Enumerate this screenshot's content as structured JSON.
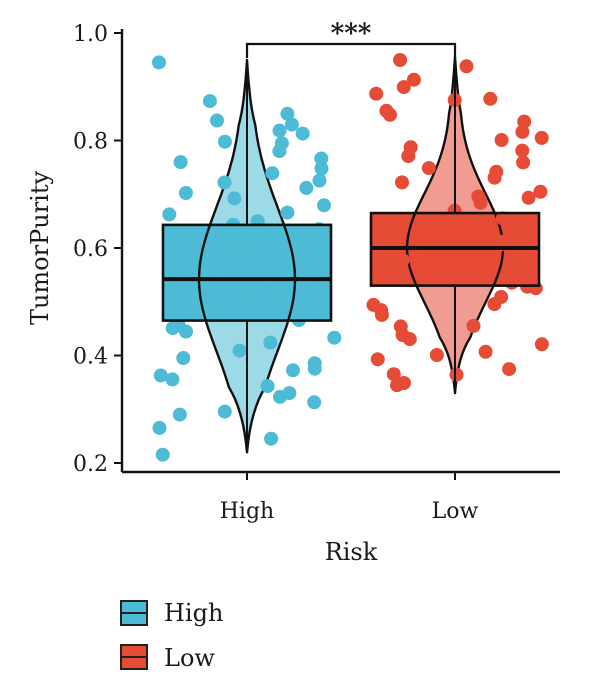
{
  "chart_data": {
    "type": "box",
    "xlabel": "Risk",
    "ylabel": "TumorPurity",
    "ylim": [
      0.2,
      1.0
    ],
    "yticks": [
      0.2,
      0.4,
      0.6,
      0.8,
      1.0
    ],
    "ytick_labels": [
      "0.2",
      "0.4",
      "0.6",
      "0.8",
      "1.0"
    ],
    "categories": [
      "High",
      "Low"
    ],
    "significance": "***",
    "legend": {
      "placement": "bottom-left",
      "entries": [
        "High",
        "Low"
      ]
    },
    "series": [
      {
        "name": "High",
        "color": "#4dbbd5",
        "box": {
          "q1": 0.465,
          "median": 0.542,
          "q3": 0.643,
          "whisker_low": 0.22,
          "whisker_high": 0.95
        },
        "violin_range": [
          0.22,
          0.95
        ],
        "points": [
          0.95,
          0.87,
          0.85,
          0.84,
          0.83,
          0.82,
          0.81,
          0.8,
          0.79,
          0.78,
          0.77,
          0.76,
          0.75,
          0.74,
          0.73,
          0.72,
          0.71,
          0.7,
          0.69,
          0.68,
          0.67,
          0.66,
          0.65,
          0.64,
          0.63,
          0.62,
          0.61,
          0.6,
          0.59,
          0.58,
          0.57,
          0.56,
          0.55,
          0.54,
          0.53,
          0.52,
          0.51,
          0.5,
          0.49,
          0.48,
          0.47,
          0.46,
          0.45,
          0.44,
          0.43,
          0.42,
          0.41,
          0.4,
          0.39,
          0.38,
          0.37,
          0.36,
          0.35,
          0.34,
          0.33,
          0.32,
          0.31,
          0.3,
          0.29,
          0.27,
          0.25,
          0.22
        ]
      },
      {
        "name": "Low",
        "color": "#e64b35",
        "box": {
          "q1": 0.53,
          "median": 0.6,
          "q3": 0.665,
          "whisker_low": 0.33,
          "whisker_high": 0.955
        },
        "violin_range": [
          0.33,
          0.955
        ],
        "points": [
          0.955,
          0.94,
          0.91,
          0.9,
          0.89,
          0.88,
          0.87,
          0.86,
          0.85,
          0.83,
          0.82,
          0.81,
          0.8,
          0.79,
          0.78,
          0.77,
          0.76,
          0.75,
          0.74,
          0.73,
          0.72,
          0.71,
          0.7,
          0.69,
          0.68,
          0.67,
          0.66,
          0.65,
          0.64,
          0.63,
          0.62,
          0.61,
          0.6,
          0.59,
          0.58,
          0.57,
          0.56,
          0.55,
          0.54,
          0.53,
          0.52,
          0.51,
          0.5,
          0.49,
          0.48,
          0.47,
          0.46,
          0.45,
          0.44,
          0.43,
          0.42,
          0.41,
          0.4,
          0.39,
          0.38,
          0.37,
          0.36,
          0.35,
          0.34
        ]
      }
    ]
  }
}
